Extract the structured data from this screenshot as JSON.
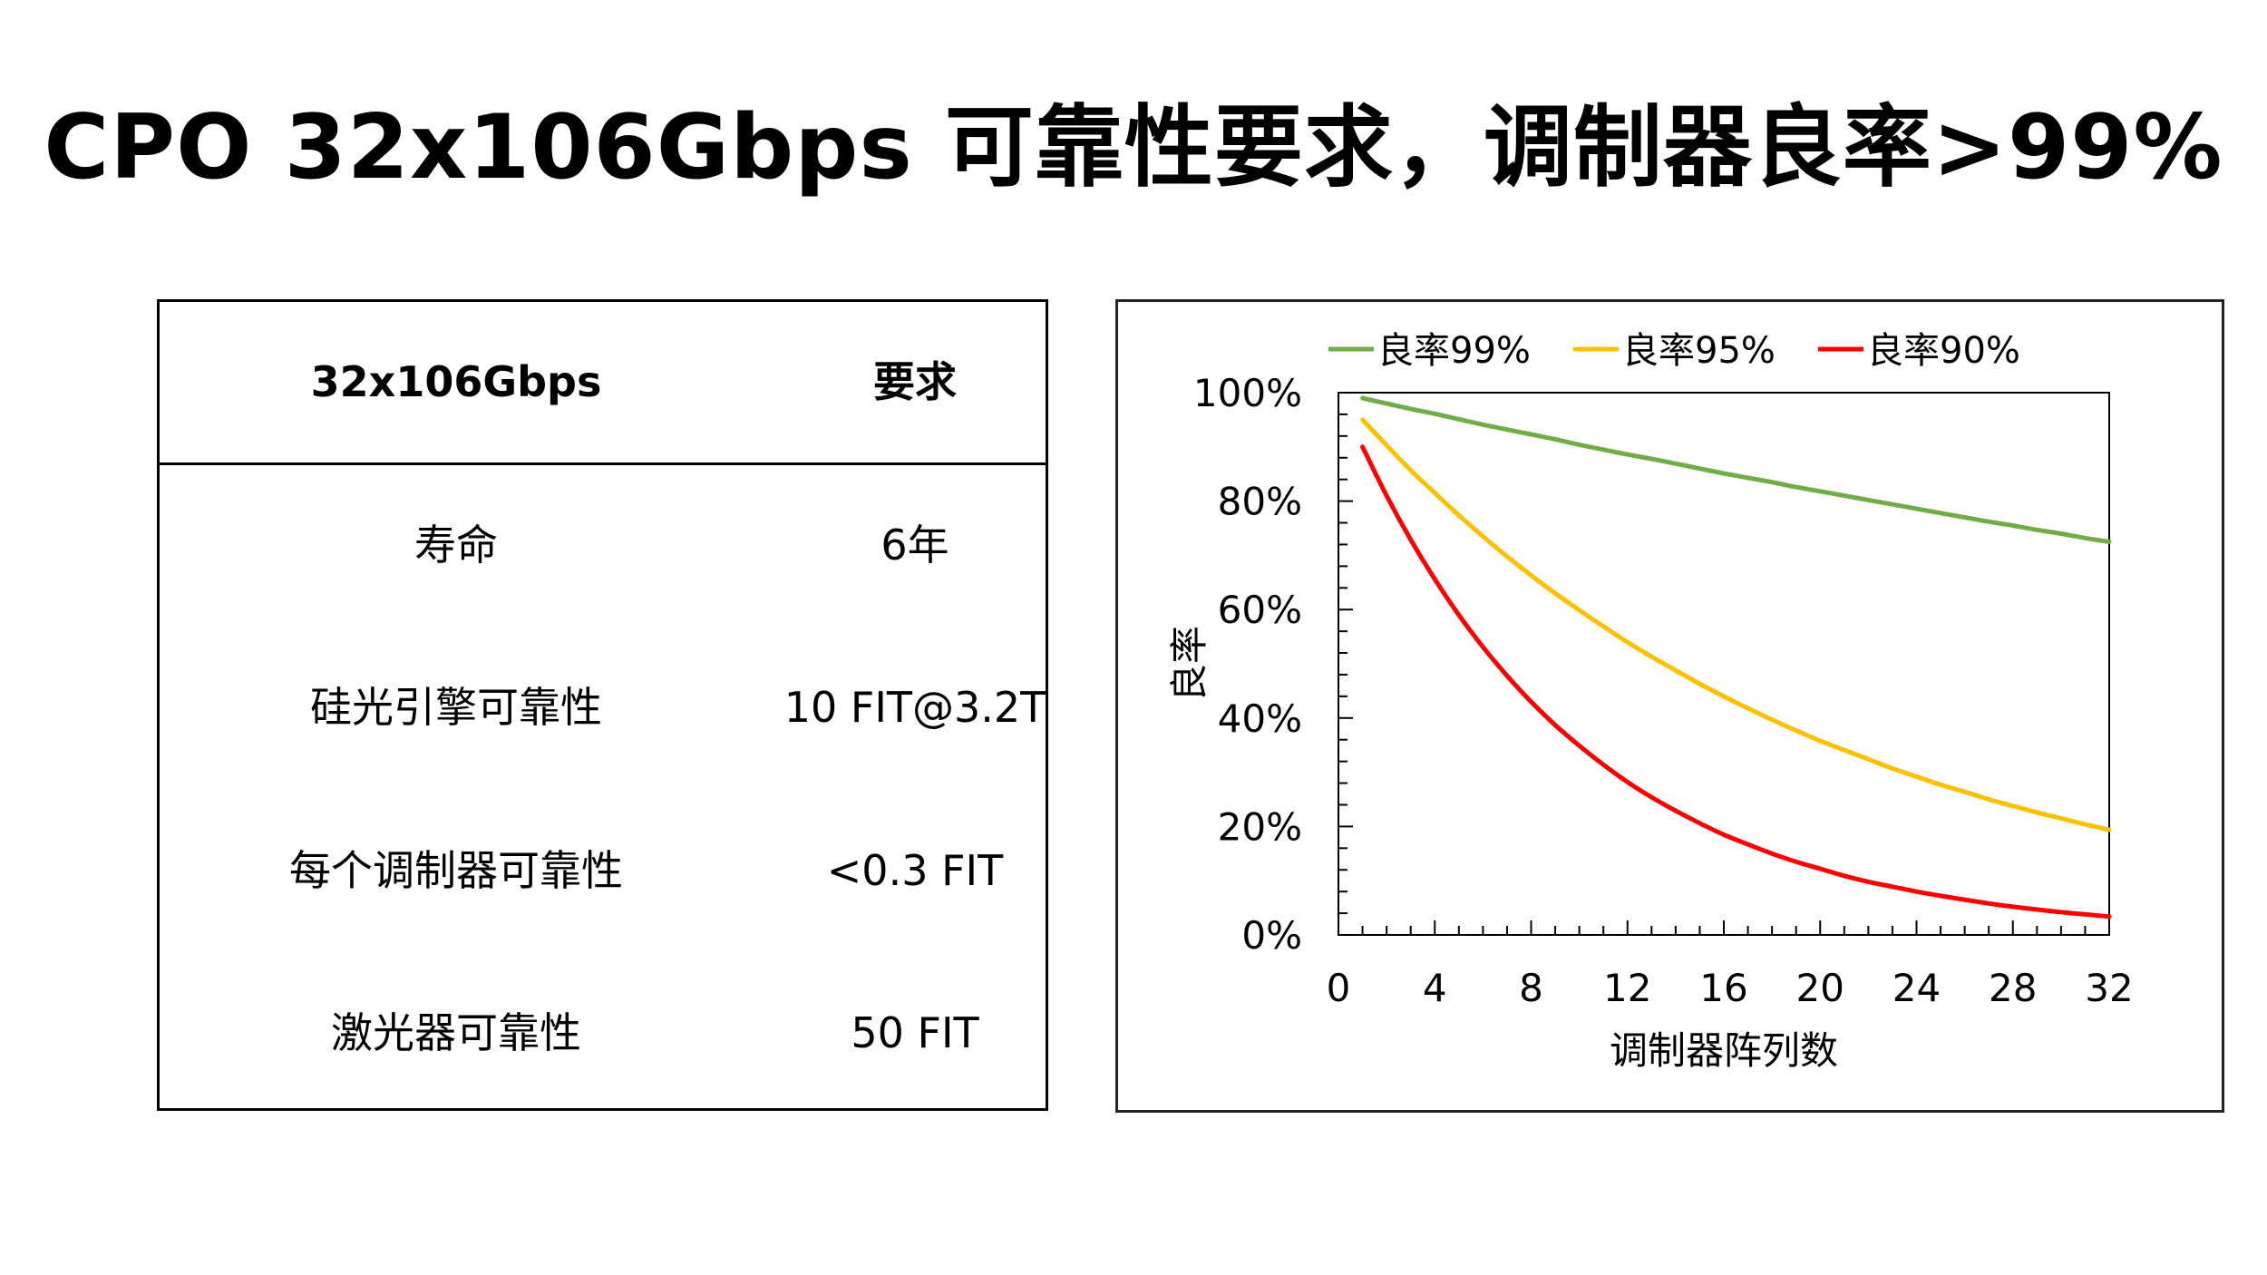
{
  "slide": {
    "title": "CPO 32x106Gbps 可靠性要求，调制器良率>99%"
  },
  "table": {
    "header": [
      "32x106Gbps",
      "要求"
    ],
    "rows": [
      [
        "寿命",
        "6年"
      ],
      [
        "硅光引擎可靠性",
        "10 FIT@3.2T"
      ],
      [
        "每个调制器可靠性",
        "<0.3 FIT"
      ],
      [
        "激光器可靠性",
        "50 FIT"
      ]
    ]
  },
  "chart_data": {
    "type": "line",
    "title": "",
    "xlabel": "调制器阵列数",
    "ylabel": "良率",
    "xlim": [
      0,
      32
    ],
    "ylim": [
      0,
      100
    ],
    "x_ticks": [
      0,
      4,
      8,
      12,
      16,
      20,
      24,
      28,
      32
    ],
    "y_ticks": [
      0,
      20,
      40,
      60,
      80,
      100
    ],
    "y_tick_suffix": "%",
    "grid": false,
    "legend_position": "top",
    "x": [
      1,
      2,
      3,
      4,
      5,
      6,
      7,
      8,
      9,
      10,
      11,
      12,
      13,
      14,
      15,
      16,
      17,
      18,
      19,
      20,
      21,
      22,
      23,
      24,
      25,
      26,
      27,
      28,
      29,
      30,
      31,
      32
    ],
    "series": [
      {
        "name": "良率99%",
        "color": "#70AD47",
        "values": [
          99.0,
          98.0,
          97.0,
          96.1,
          95.1,
          94.1,
          93.2,
          92.3,
          91.4,
          90.4,
          89.5,
          88.6,
          87.8,
          86.9,
          86.0,
          85.1,
          84.3,
          83.5,
          82.6,
          81.8,
          81.0,
          80.2,
          79.4,
          78.6,
          77.8,
          77.0,
          76.2,
          75.5,
          74.7,
          74.0,
          73.2,
          72.5
        ]
      },
      {
        "name": "良率95%",
        "color": "#FFC000",
        "values": [
          95.0,
          90.3,
          85.7,
          81.5,
          77.4,
          73.5,
          69.8,
          66.3,
          63.0,
          59.9,
          56.9,
          54.0,
          51.3,
          48.8,
          46.3,
          44.0,
          41.8,
          39.7,
          37.7,
          35.8,
          34.1,
          32.4,
          30.7,
          29.2,
          27.7,
          26.4,
          25.0,
          23.8,
          22.6,
          21.5,
          20.4,
          19.4
        ]
      },
      {
        "name": "良率90%",
        "color": "#FF0000",
        "values": [
          90.0,
          81.0,
          72.9,
          65.6,
          59.0,
          53.1,
          47.8,
          43.0,
          38.7,
          34.9,
          31.4,
          28.2,
          25.4,
          22.9,
          20.6,
          18.5,
          16.7,
          15.0,
          13.5,
          12.2,
          10.9,
          9.8,
          8.9,
          8.0,
          7.2,
          6.5,
          5.8,
          5.2,
          4.7,
          4.2,
          3.8,
          3.4
        ]
      }
    ]
  }
}
